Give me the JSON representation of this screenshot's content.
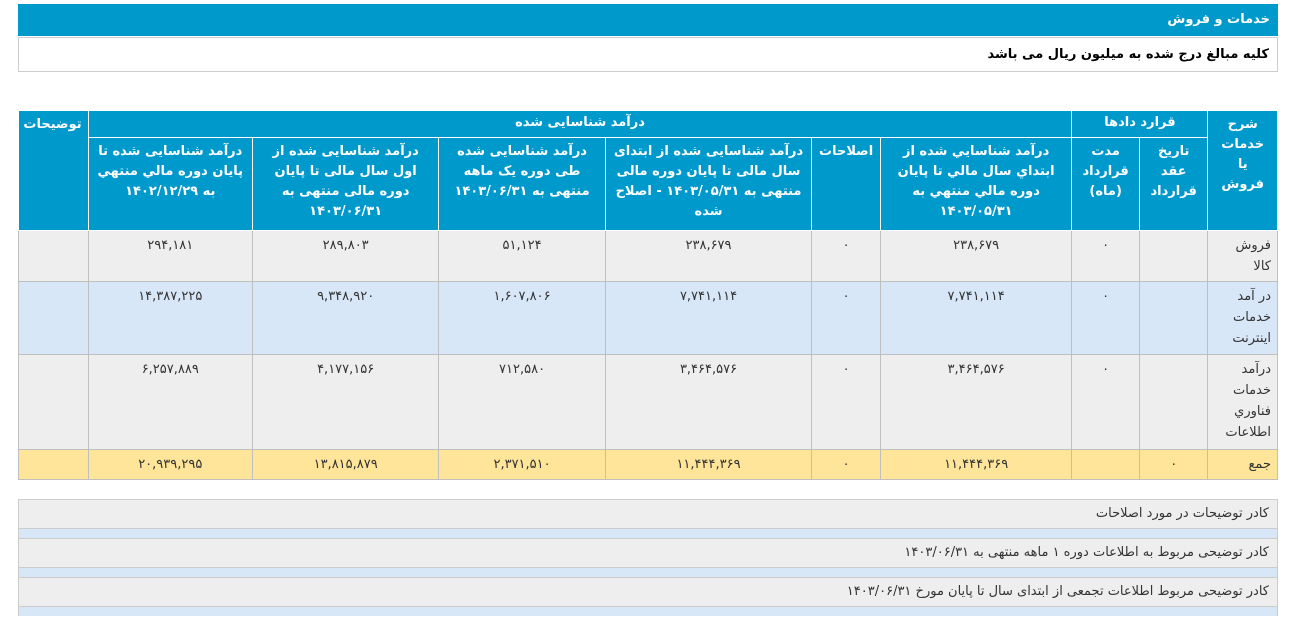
{
  "header": {
    "title": "خدمات و فروش",
    "unit_note": "کلیه مبالغ درج شده به میلیون ریال می باشد"
  },
  "table": {
    "group_headers": {
      "description": "شرح خدمات يا فروش",
      "contracts": "قرارد دادها",
      "recognized_revenue": "درآمد شناسایی شده",
      "notes": "توضیحات"
    },
    "sub_headers": {
      "contract_date": "تاريخ عقد قرارداد",
      "contract_duration": "مدت قرارداد (ماه)",
      "revenue_prior": "درآمد شناسايي شده از ابتداي سال مالي تا پايان دوره مالي منتهي به ۱۴۰۳/۰۵/۳۱",
      "adjustments": "اصلاحات",
      "revenue_prior_adjusted": "درآمد شناسایی شده از ابتدای سال مالی تا پایان دوره مالی منتهی به ۱۴۰۳/۰۵/۳۱ - اصلاح شده",
      "revenue_month": "درآمد شناسایی شده طی دوره یک ماهه منتهی به ۱۴۰۳/۰۶/۳۱",
      "revenue_ytd": "درآمد شناسایی شده از اول سال مالی تا پایان دوره مالی منتهی به ۱۴۰۳/۰۶/۳۱",
      "revenue_year_end": "درآمد شناسایی شده تا پایان دوره مالي منتهي به ۱۴۰۲/۱۲/۲۹"
    },
    "rows": [
      {
        "description": "فروش کالا",
        "contract_date": "",
        "contract_duration": "۰",
        "revenue_prior": "۲۳۸,۶۷۹",
        "adjustments": "۰",
        "revenue_prior_adjusted": "۲۳۸,۶۷۹",
        "revenue_month": "۵۱,۱۲۴",
        "revenue_ytd": "۲۸۹,۸۰۳",
        "revenue_year_end": "۲۹۴,۱۸۱",
        "notes": ""
      },
      {
        "description": "در آمد خدمات اينترنت",
        "contract_date": "",
        "contract_duration": "۰",
        "revenue_prior": "۷,۷۴۱,۱۱۴",
        "adjustments": "۰",
        "revenue_prior_adjusted": "۷,۷۴۱,۱۱۴",
        "revenue_month": "۱,۶۰۷,۸۰۶",
        "revenue_ytd": "۹,۳۴۸,۹۲۰",
        "revenue_year_end": "۱۴,۳۸۷,۲۲۵",
        "notes": ""
      },
      {
        "description": "درآمد خدمات فناوري اطلاعات",
        "contract_date": "",
        "contract_duration": "۰",
        "revenue_prior": "۳,۴۶۴,۵۷۶",
        "adjustments": "۰",
        "revenue_prior_adjusted": "۳,۴۶۴,۵۷۶",
        "revenue_month": "۷۱۲,۵۸۰",
        "revenue_ytd": "۴,۱۷۷,۱۵۶",
        "revenue_year_end": "۶,۲۵۷,۸۸۹",
        "notes": ""
      }
    ],
    "total": {
      "label": "جمع",
      "contract_date": "۰",
      "contract_duration": "",
      "revenue_prior": "۱۱,۴۴۴,۳۶۹",
      "adjustments": "۰",
      "revenue_prior_adjusted": "۱۱,۴۴۴,۳۶۹",
      "revenue_month": "۲,۳۷۱,۵۱۰",
      "revenue_ytd": "۱۳,۸۱۵,۸۷۹",
      "revenue_year_end": "۲۰,۹۳۹,۲۹۵",
      "notes": ""
    }
  },
  "notes": [
    "کادر توضیحات در مورد اصلاحات",
    "کادر توضیحی مربوط به اطلاعات دوره ۱ ماهه منتهی به ۱۴۰۳/۰۶/۳۱",
    "کادر توضیحی مربوط اطلاعات تجمعی از ابتدای سال تا پایان مورخ ۱۴۰۳/۰۶/۳۱"
  ]
}
